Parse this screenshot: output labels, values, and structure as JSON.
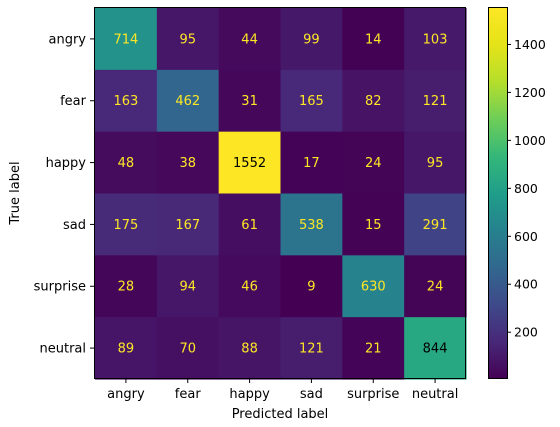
{
  "chart_data": {
    "type": "heatmap",
    "title": "",
    "xlabel": "Predicted label",
    "ylabel": "True label",
    "x_categories": [
      "angry",
      "fear",
      "happy",
      "sad",
      "surprise",
      "neutral"
    ],
    "y_categories": [
      "angry",
      "fear",
      "happy",
      "sad",
      "surprise",
      "neutral"
    ],
    "values": [
      [
        714,
        95,
        44,
        99,
        14,
        103
      ],
      [
        163,
        462,
        31,
        165,
        82,
        121
      ],
      [
        48,
        38,
        1552,
        17,
        24,
        95
      ],
      [
        175,
        167,
        61,
        538,
        15,
        291
      ],
      [
        28,
        94,
        46,
        9,
        630,
        24
      ],
      [
        89,
        70,
        88,
        121,
        21,
        844
      ]
    ],
    "colormap": "viridis",
    "color_range": [
      9,
      1552
    ],
    "colorbar_ticks": [
      200,
      400,
      600,
      800,
      1000,
      1200,
      1400
    ],
    "text_color_dark_cells": "#fde725",
    "text_color_bright_cells": "#000000",
    "grid": false
  }
}
